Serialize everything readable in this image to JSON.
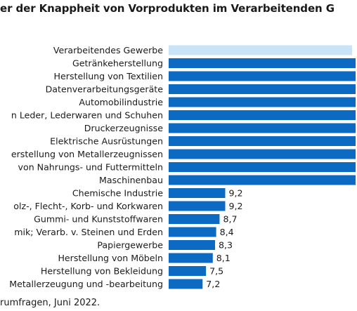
{
  "title_visible": "er der Knappheit von Vorprodukten im Verarbeitenden G",
  "note_visible": "rumfragen, Juni 2022.",
  "colors": {
    "bar": "#0d6ac2",
    "highlight_bar": "#c9e4f7",
    "text": "#1a1a1a",
    "background": "#ffffff"
  },
  "chart_data": {
    "type": "bar",
    "orientation": "horizontal",
    "categories": [
      "Verarbeitendes Gewerbe",
      "Getränkeherstellung",
      "Herstellung von Textilien",
      "Datenverarbeitungsgeräte",
      "Automobilindustrie",
      "n Leder, Lederwaren und Schuhen",
      "Druckerzeugnisse",
      "Elektrische Ausrüstungen",
      "erstellung von Metallerzeugnissen",
      "von Nahrungs- und Futtermitteln",
      "Maschinenbau",
      "Chemische Industrie",
      "olz-, Flecht-, Korb- und Korkwaren",
      "Gummi- und Kunststoffwaren",
      "mik; Verarb. v. Steinen und Erden",
      "Papiergewerbe",
      "Herstellung von Möbeln",
      "Herstellung von Bekleidung",
      "Metallerzeugung und -bearbeitung"
    ],
    "values": [
      null,
      null,
      null,
      null,
      null,
      null,
      null,
      null,
      null,
      null,
      null,
      9.2,
      9.2,
      8.7,
      8.4,
      8.3,
      8.1,
      7.5,
      7.2
    ],
    "value_labels": [
      "",
      "",
      "",
      "",
      "",
      "",
      "",
      "",
      "",
      "",
      "",
      "9,2",
      "9,2",
      "8,7",
      "8,4",
      "8,3",
      "8,1",
      "7,5",
      "7,2"
    ],
    "highlight_index": 0,
    "grid": false,
    "legend": "none"
  }
}
